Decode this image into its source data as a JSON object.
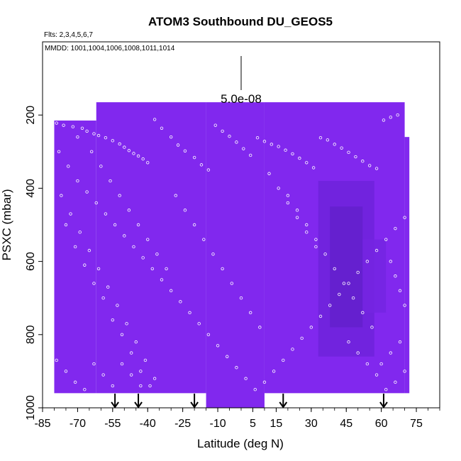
{
  "chart_data": {
    "type": "heatmap",
    "title": "ATOM3 Southbound DU_GEOS5",
    "flights_note": "Flts: 2,3,4,5,6,7",
    "dates_note": "MMDD: 1001,1004,1006,1008,1011,1014",
    "scale_label": "5.0e-08",
    "xlabel": "Latitude (deg N)",
    "ylabel": "PSXC (mbar)",
    "xlim": [
      -85,
      85
    ],
    "ylim": [
      1000,
      0
    ],
    "x_ticks": [
      -85,
      -70,
      -55,
      -40,
      -25,
      -10,
      5,
      15,
      30,
      45,
      60,
      75
    ],
    "x_tick_labels": [
      "-85",
      "-70",
      "-55",
      "-40",
      "-25",
      "-10",
      "5",
      "15",
      "30",
      "45",
      "60",
      "75"
    ],
    "y_ticks": [
      200,
      400,
      600,
      800,
      1000
    ],
    "y_tick_labels": [
      "200",
      "400",
      "600",
      "800",
      "1000"
    ],
    "base_color": "#8128ee",
    "arrow_latitudes": [
      -54,
      -44,
      -20,
      18,
      61
    ],
    "field_regions": [
      {
        "lat_min": -80,
        "lat_max": -62,
        "p_top": 215,
        "p_bottom": 960
      },
      {
        "lat_min": -62,
        "lat_max": -15,
        "p_top": 165,
        "p_bottom": 960
      },
      {
        "lat_min": -15,
        "lat_max": 10,
        "p_top": 165,
        "p_bottom": 1000
      },
      {
        "lat_min": 10,
        "lat_max": 70,
        "p_top": 165,
        "p_bottom": 960
      },
      {
        "lat_min": 70,
        "lat_max": 72,
        "p_top": 260,
        "p_bottom": 960
      }
    ],
    "darker_patches": [
      {
        "lat_min": 33,
        "lat_max": 57,
        "p_top": 380,
        "p_bottom": 860,
        "color": "#6e22da"
      },
      {
        "lat_min": 38,
        "lat_max": 52,
        "p_top": 450,
        "p_bottom": 780,
        "color": "#6320cc"
      },
      {
        "lat_min": 52,
        "lat_max": 62,
        "p_top": 540,
        "p_bottom": 740,
        "color": "#7424e2"
      }
    ],
    "obs_points": [
      [
        -79,
        222
      ],
      [
        -76,
        228
      ],
      [
        -72,
        232
      ],
      [
        -68,
        236
      ],
      [
        -66,
        244
      ],
      [
        -63,
        251
      ],
      [
        -61,
        256
      ],
      [
        -58,
        262
      ],
      [
        -55,
        270
      ],
      [
        -52,
        279
      ],
      [
        -50,
        288
      ],
      [
        -48,
        297
      ],
      [
        -46,
        305
      ],
      [
        -44,
        312
      ],
      [
        -42,
        320
      ],
      [
        -40,
        330
      ],
      [
        -37,
        212
      ],
      [
        -34,
        236
      ],
      [
        -30,
        260
      ],
      [
        -27,
        282
      ],
      [
        -24,
        298
      ],
      [
        -20,
        316
      ],
      [
        -17,
        336
      ],
      [
        -14,
        350
      ],
      [
        -11,
        228
      ],
      [
        -8,
        244
      ],
      [
        -5,
        258
      ],
      [
        -2,
        274
      ],
      [
        1,
        292
      ],
      [
        4,
        310
      ],
      [
        7,
        262
      ],
      [
        10,
        272
      ],
      [
        13,
        280
      ],
      [
        16,
        286
      ],
      [
        19,
        296
      ],
      [
        22,
        306
      ],
      [
        25,
        318
      ],
      [
        28,
        330
      ],
      [
        31,
        344
      ],
      [
        34,
        262
      ],
      [
        37,
        268
      ],
      [
        40,
        280
      ],
      [
        43,
        290
      ],
      [
        46,
        302
      ],
      [
        49,
        314
      ],
      [
        52,
        326
      ],
      [
        55,
        338
      ],
      [
        58,
        346
      ],
      [
        61,
        214
      ],
      [
        64,
        206
      ],
      [
        67,
        200
      ],
      [
        -78,
        300
      ],
      [
        -74,
        340
      ],
      [
        -70,
        380
      ],
      [
        -66,
        410
      ],
      [
        -62,
        440
      ],
      [
        -58,
        470
      ],
      [
        -54,
        500
      ],
      [
        -50,
        530
      ],
      [
        -46,
        560
      ],
      [
        -42,
        590
      ],
      [
        -38,
        620
      ],
      [
        -34,
        650
      ],
      [
        -30,
        680
      ],
      [
        -26,
        710
      ],
      [
        -22,
        740
      ],
      [
        -18,
        770
      ],
      [
        -14,
        800
      ],
      [
        -10,
        830
      ],
      [
        -6,
        860
      ],
      [
        -2,
        890
      ],
      [
        2,
        920
      ],
      [
        6,
        950
      ],
      [
        10,
        930
      ],
      [
        14,
        900
      ],
      [
        18,
        870
      ],
      [
        22,
        840
      ],
      [
        26,
        810
      ],
      [
        30,
        780
      ],
      [
        34,
        750
      ],
      [
        38,
        720
      ],
      [
        42,
        690
      ],
      [
        46,
        660
      ],
      [
        50,
        630
      ],
      [
        54,
        600
      ],
      [
        58,
        570
      ],
      [
        62,
        540
      ],
      [
        66,
        510
      ],
      [
        70,
        480
      ],
      [
        -77,
        420
      ],
      [
        -73,
        470
      ],
      [
        -69,
        520
      ],
      [
        -65,
        570
      ],
      [
        -61,
        620
      ],
      [
        -57,
        670
      ],
      [
        -53,
        720
      ],
      [
        -49,
        770
      ],
      [
        -45,
        820
      ],
      [
        -41,
        870
      ],
      [
        -37,
        920
      ],
      [
        -75,
        500
      ],
      [
        -71,
        560
      ],
      [
        -67,
        610
      ],
      [
        -63,
        660
      ],
      [
        -59,
        700
      ],
      [
        -55,
        760
      ],
      [
        -51,
        800
      ],
      [
        -47,
        850
      ],
      [
        -43,
        900
      ],
      [
        -39,
        940
      ],
      [
        -70,
        260
      ],
      [
        -64,
        300
      ],
      [
        -60,
        340
      ],
      [
        -56,
        380
      ],
      [
        -52,
        420
      ],
      [
        -48,
        460
      ],
      [
        -44,
        500
      ],
      [
        -40,
        540
      ],
      [
        -36,
        580
      ],
      [
        -32,
        620
      ],
      [
        20,
        420
      ],
      [
        24,
        460
      ],
      [
        28,
        500
      ],
      [
        32,
        540
      ],
      [
        36,
        580
      ],
      [
        40,
        620
      ],
      [
        44,
        660
      ],
      [
        48,
        700
      ],
      [
        52,
        740
      ],
      [
        56,
        780
      ],
      [
        12,
        360
      ],
      [
        16,
        400
      ],
      [
        20,
        440
      ],
      [
        24,
        480
      ],
      [
        28,
        520
      ],
      [
        32,
        560
      ],
      [
        64,
        600
      ],
      [
        66,
        640
      ],
      [
        68,
        680
      ],
      [
        70,
        720
      ],
      [
        -28,
        420
      ],
      [
        -24,
        460
      ],
      [
        -20,
        500
      ],
      [
        -16,
        540
      ],
      [
        -12,
        580
      ],
      [
        -8,
        620
      ],
      [
        -4,
        660
      ],
      [
        0,
        700
      ],
      [
        4,
        740
      ],
      [
        8,
        780
      ],
      [
        -79,
        870
      ],
      [
        -75,
        900
      ],
      [
        -71,
        930
      ],
      [
        -67,
        950
      ],
      [
        -63,
        880
      ],
      [
        -59,
        910
      ],
      [
        -55,
        940
      ],
      [
        -51,
        880
      ],
      [
        -47,
        910
      ],
      [
        -43,
        940
      ],
      [
        60,
        880
      ],
      [
        64,
        850
      ],
      [
        68,
        820
      ],
      [
        70,
        900
      ],
      [
        66,
        930
      ],
      [
        62,
        950
      ],
      [
        58,
        910
      ],
      [
        54,
        880
      ],
      [
        50,
        850
      ],
      [
        46,
        820
      ]
    ]
  }
}
